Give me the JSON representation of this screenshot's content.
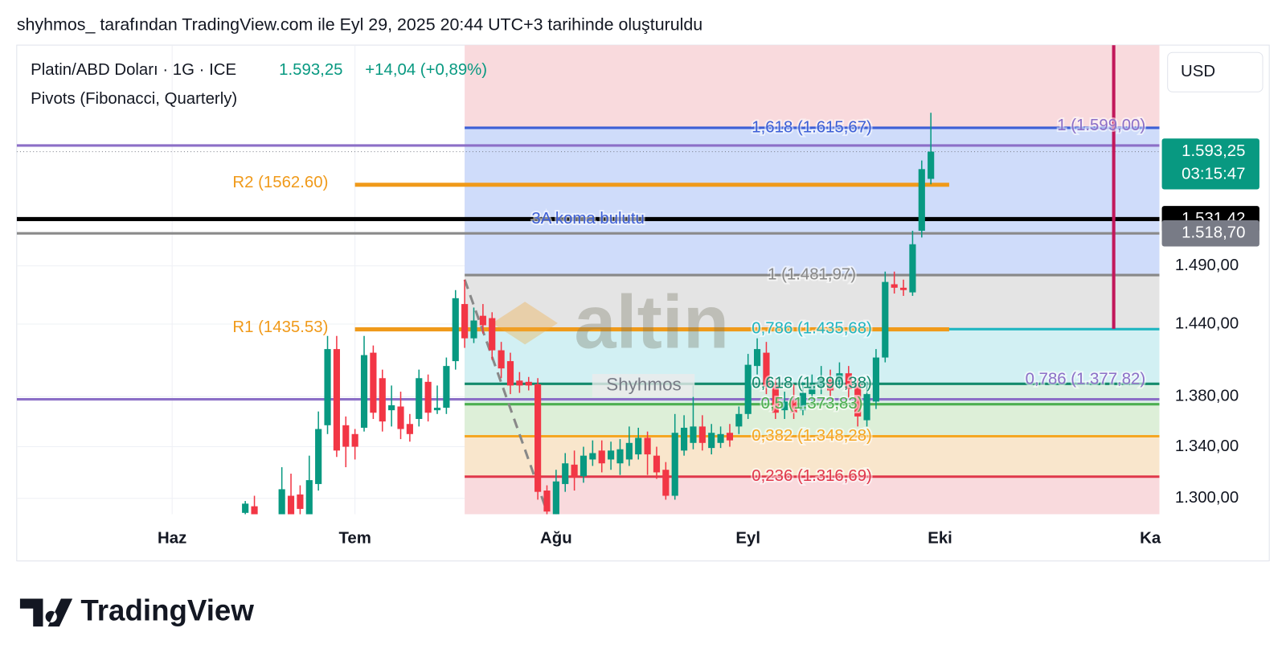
{
  "header": {
    "caption": "shyhmos_ tarafından TradingView.com ile Eyl 29, 2025 20:44 UTC+3 tarihinde oluşturuldu"
  },
  "chart_data": {
    "type": "candlestick",
    "title": "Platin/ABD Doları · 1G · ICE",
    "last_price": {
      "value": 1593.25,
      "label": "1.593,25"
    },
    "change_label": "+14,04 (+0,89%)",
    "indicator": "Pivots (Fibonacci, Quarterly)",
    "currency": "USD",
    "watermark": "altin",
    "author_tag": "Shyhmos",
    "up_color": "#089981",
    "down_color": "#f23645",
    "x": [
      0,
      1,
      4,
      5,
      6,
      7,
      8,
      9,
      10,
      11,
      12,
      13,
      14,
      15,
      16,
      17,
      18,
      19,
      20,
      21,
      22,
      23,
      24,
      25,
      26,
      27,
      28,
      29,
      30,
      31,
      32,
      33,
      34,
      35,
      36,
      37,
      38,
      39,
      40,
      41,
      42,
      43,
      44,
      45,
      46,
      47,
      48,
      49,
      50,
      51,
      52,
      53,
      54,
      55,
      56,
      57,
      58,
      59,
      60,
      61,
      62,
      63,
      64,
      65,
      66,
      67,
      68,
      69,
      70,
      71,
      72,
      73,
      74,
      75
    ],
    "open": [
      1289,
      1294,
      1286,
      1302,
      1303,
      1285,
      1311,
      1357,
      1419,
      1357,
      1350,
      1355,
      1416,
      1395,
      1369,
      1372,
      1358,
      1362,
      1392,
      1369,
      1371,
      1409,
      1457,
      1428,
      1447,
      1445,
      1418,
      1409,
      1393,
      1392,
      1390,
      1306,
      1288,
      1311,
      1326,
      1317,
      1330,
      1337,
      1330,
      1327,
      1330,
      1334,
      1347,
      1333,
      1322,
      1302,
      1337,
      1343,
      1356,
      1339,
      1343,
      1351,
      1356,
      1366,
      1405,
      1416,
      1389,
      1369,
      1377,
      1369,
      1382,
      1388,
      1394,
      1392,
      1399,
      1390,
      1361,
      1376,
      1412,
      1474,
      1471,
      1467,
      1521,
      1568
    ],
    "high": [
      1298,
      1302,
      1324,
      1319,
      1310,
      1333,
      1368,
      1430,
      1430,
      1364,
      1354,
      1430,
      1422,
      1402,
      1389,
      1384,
      1366,
      1402,
      1398,
      1389,
      1412,
      1469,
      1478,
      1454,
      1457,
      1450,
      1425,
      1416,
      1400,
      1396,
      1395,
      1310,
      1322,
      1335,
      1337,
      1340,
      1345,
      1345,
      1344,
      1346,
      1356,
      1355,
      1352,
      1340,
      1328,
      1366,
      1365,
      1389,
      1365,
      1358,
      1356,
      1358,
      1372,
      1415,
      1428,
      1425,
      1395,
      1384,
      1390,
      1392,
      1398,
      1405,
      1402,
      1408,
      1405,
      1395,
      1392,
      1419,
      1485,
      1485,
      1478,
      1521,
      1585,
      1630
    ],
    "low": [
      1286,
      1284,
      1283,
      1282,
      1285,
      1282,
      1306,
      1350,
      1332,
      1324,
      1330,
      1352,
      1362,
      1352,
      1356,
      1346,
      1344,
      1356,
      1360,
      1366,
      1366,
      1402,
      1420,
      1424,
      1432,
      1410,
      1395,
      1382,
      1383,
      1385,
      1299,
      1286,
      1284,
      1305,
      1306,
      1312,
      1325,
      1320,
      1322,
      1318,
      1325,
      1330,
      1318,
      1315,
      1299,
      1299,
      1333,
      1338,
      1337,
      1334,
      1339,
      1340,
      1350,
      1362,
      1398,
      1382,
      1362,
      1362,
      1362,
      1365,
      1376,
      1382,
      1380,
      1386,
      1379,
      1356,
      1356,
      1370,
      1408,
      1466,
      1464,
      1464,
      1515,
      1563
    ],
    "close": [
      1296,
      1287,
      1307,
      1286,
      1292,
      1314,
      1354,
      1419,
      1337,
      1340,
      1340,
      1414,
      1367,
      1360,
      1373,
      1354,
      1350,
      1395,
      1367,
      1371,
      1405,
      1462,
      1428,
      1443,
      1439,
      1418,
      1403,
      1389,
      1389,
      1389,
      1305,
      1290,
      1313,
      1327,
      1316,
      1333,
      1335,
      1327,
      1337,
      1338,
      1343,
      1347,
      1334,
      1320,
      1302,
      1351,
      1355,
      1356,
      1343,
      1351,
      1350,
      1345,
      1366,
      1406,
      1419,
      1388,
      1367,
      1376,
      1367,
      1383,
      1389,
      1395,
      1385,
      1399,
      1386,
      1364,
      1382,
      1412,
      1476,
      1471,
      1469,
      1509,
      1577,
      1593.25
    ],
    "xlim": [
      -25,
      100
    ],
    "xticks": [
      {
        "value": -8,
        "label": "Haz"
      },
      {
        "value": 12,
        "label": "Tem"
      },
      {
        "value": 34,
        "label": "Ağu"
      },
      {
        "value": 55,
        "label": "Eyl"
      },
      {
        "value": 76,
        "label": "Eki"
      },
      {
        "value": 99,
        "label": "Ka"
      }
    ],
    "ylim": [
      1288,
      1696
    ],
    "yticks": [
      {
        "value": 1300,
        "label": "1.300,00"
      },
      {
        "value": 1340,
        "label": "1.340,00"
      },
      {
        "value": 1380,
        "label": "1.380,00"
      },
      {
        "value": 1440,
        "label": "1.440,00"
      },
      {
        "value": 1490,
        "label": "1.490,00"
      }
    ],
    "log_scale": true,
    "grid": true,
    "fibonacci": {
      "from": 24,
      "levels": [
        {
          "label": "1,618 (1.615,67)",
          "value": 1615.67,
          "color": "#3d5fd6",
          "fill": "#cfdcfa"
        },
        {
          "label": "1 (1.481,97)",
          "value": 1481.97,
          "color": "#888888",
          "fill": "#e4e4e4"
        },
        {
          "label": "0,786 (1.435,68)",
          "value": 1435.68,
          "color": "#1fb6c1",
          "fill": "#d2f0f3"
        },
        {
          "label": "0,618 (1.390,38)",
          "value": 1390.38,
          "color": "#138a6c",
          "fill": "#d9efe3"
        },
        {
          "label": "0,5 (1.373,83)",
          "value": 1373.83,
          "color": "#4caf50",
          "fill": "#ddefd8"
        },
        {
          "label": "0,382 (1.348,28)",
          "value": 1348.28,
          "color": "#f5a623",
          "fill": "#f9e6cc"
        },
        {
          "label": "0,236 (1.316,69)",
          "value": 1316.69,
          "color": "#e0384b",
          "fill": "#f8dadd"
        }
      ]
    },
    "pivots": {
      "from": 12,
      "to": 77,
      "color": "#f09a1a",
      "levels": [
        {
          "label": "R2 (1562.60)",
          "value": 1562.6
        },
        {
          "label": "R1 (1435.53)",
          "value": 1435.53
        }
      ]
    },
    "fib_right": {
      "color": "#8c6fc7",
      "levels": [
        {
          "label": "1 (1.599,00)",
          "value": 1599.0
        },
        {
          "label": "0,786 (1.377,82)",
          "value": 1377.82
        }
      ]
    },
    "lines": [
      {
        "label": "3A koma bulutu",
        "value": 1531.42,
        "color": "#000000"
      },
      {
        "value": 1518.7,
        "color": "#8a8a8a"
      }
    ],
    "vline": {
      "x": 95,
      "low": 1436,
      "color": "#c2185b"
    },
    "trend_line": {
      "x": [
        24,
        33
      ],
      "y": [
        1478,
        1290
      ]
    },
    "price_badges": [
      {
        "value": 1593.25,
        "label": "1.593,25",
        "sub": "03:15:47",
        "color": "#089981"
      },
      {
        "value": 1531.42,
        "label": "1.531,42",
        "color": "#000000"
      },
      {
        "value": 1518.7,
        "label": "1.518,70",
        "color": "#787b86"
      }
    ]
  },
  "footer": {
    "brand": "TradingView"
  }
}
